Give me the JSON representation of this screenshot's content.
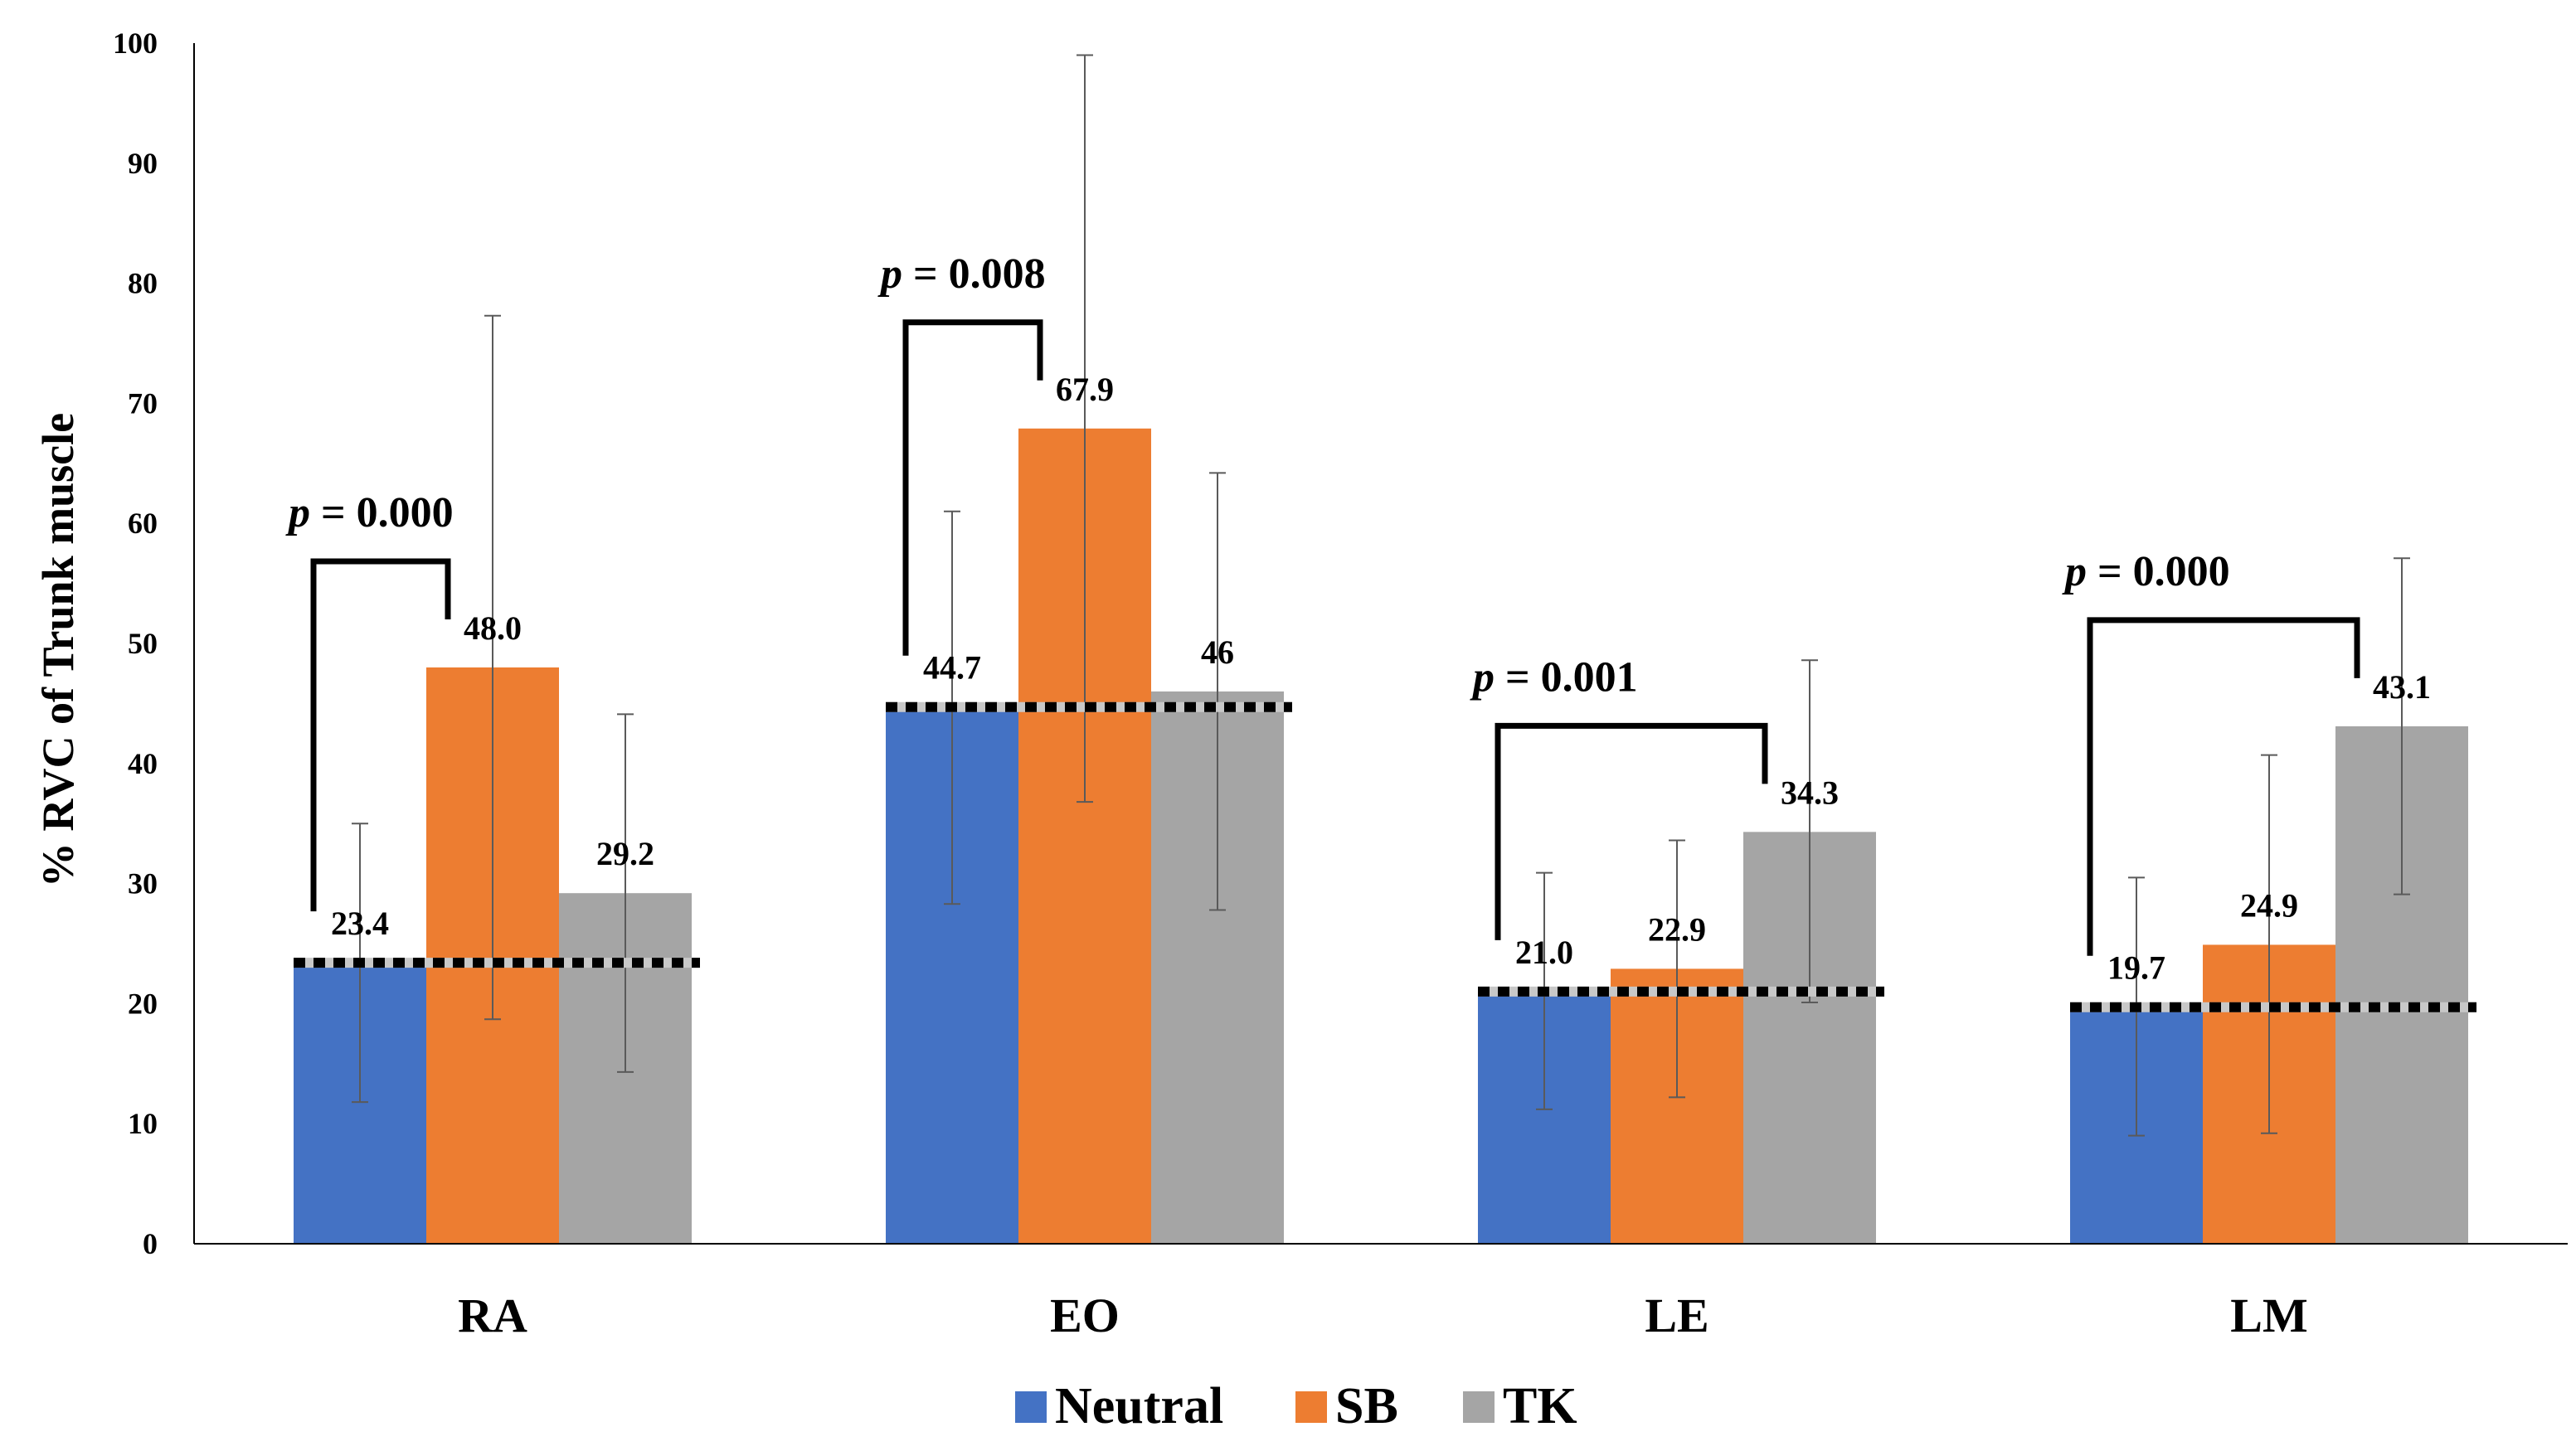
{
  "chart_data": {
    "type": "bar",
    "title": "",
    "xlabel": "",
    "ylabel": "% RVC of Trunk muscle",
    "ylim": [
      0,
      100
    ],
    "yticks": [
      "0",
      "10",
      "20",
      "30",
      "40",
      "50",
      "60",
      "70",
      "80",
      "90",
      "100"
    ],
    "grid": false,
    "legend_position": "bottom-center",
    "categories": [
      "RA",
      "EO",
      "LE",
      "LM"
    ],
    "series": [
      {
        "name": "Neutral",
        "color": "#4472C4",
        "values": [
          23.4,
          44.7,
          21.0,
          19.7
        ],
        "labels": [
          "23.4",
          "44.7",
          "21.0",
          "19.7"
        ],
        "error_low": [
          11.8,
          28.3,
          11.2,
          9.0
        ],
        "error_high": [
          35.0,
          61.0,
          30.9,
          30.5
        ]
      },
      {
        "name": "SB",
        "color": "#ED7D31",
        "values": [
          48.0,
          67.9,
          22.9,
          24.9
        ],
        "labels": [
          "48.0",
          "67.9",
          "22.9",
          "24.9"
        ],
        "error_low": [
          18.7,
          36.8,
          12.2,
          9.2
        ],
        "error_high": [
          77.3,
          99.0,
          33.6,
          40.7
        ]
      },
      {
        "name": "TK",
        "color": "#A5A5A5",
        "values": [
          29.2,
          46.0,
          34.3,
          43.1
        ],
        "labels": [
          "29.2",
          "46",
          "34.3",
          "43.1"
        ],
        "error_low": [
          14.3,
          27.8,
          20.1,
          29.1
        ],
        "error_high": [
          44.1,
          64.2,
          48.6,
          57.1
        ]
      }
    ],
    "baselines": [
      23.4,
      44.7,
      21.0,
      19.7
    ],
    "annotations": [
      {
        "category": "RA",
        "from_series": "Neutral",
        "to_series": "SB",
        "text": "= 0.000",
        "symbol": "p"
      },
      {
        "category": "EO",
        "from_series": "Neutral",
        "to_series": "SB",
        "text": "= 0.008",
        "symbol": "p"
      },
      {
        "category": "LE",
        "from_series": "Neutral",
        "to_series": "TK",
        "text": "= 0.001",
        "symbol": "p"
      },
      {
        "category": "LM",
        "from_series": "Neutral",
        "to_series": "TK",
        "text": "= 0.000",
        "symbol": "p"
      }
    ]
  }
}
